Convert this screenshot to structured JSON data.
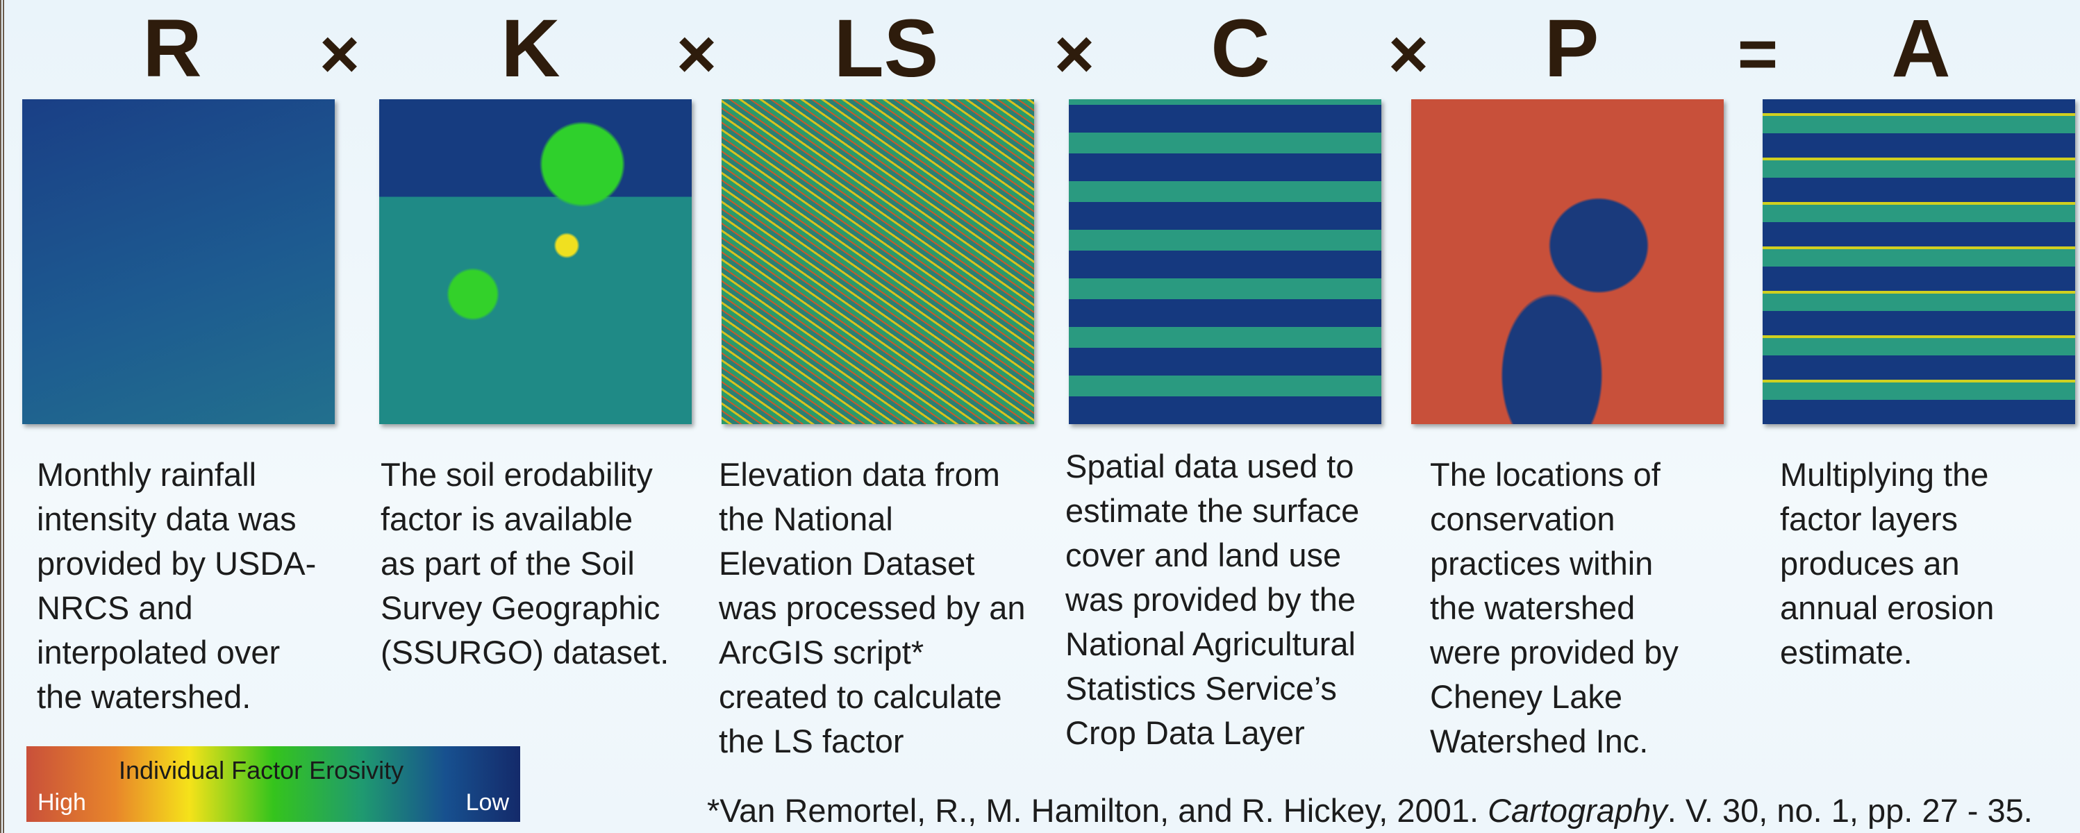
{
  "equation": {
    "terms": [
      "R",
      "K",
      "LS",
      "C",
      "P",
      "A"
    ],
    "operators": [
      "×",
      "×",
      "×",
      "×",
      "="
    ]
  },
  "panels": [
    {
      "lines": [
        "Monthly rainfall",
        "intensity data was",
        "provided by USDA-",
        "NRCS and",
        "interpolated over",
        "the watershed."
      ]
    },
    {
      "lines": [
        "The soil erodability",
        "factor is available",
        "as part of the Soil",
        "Survey Geographic",
        "(SSURGO) dataset."
      ]
    },
    {
      "lines": [
        "Elevation data from",
        "the National",
        "Elevation Dataset",
        "was processed by an",
        "ArcGIS script*",
        "created to calculate",
        "the LS factor"
      ]
    },
    {
      "lines": [
        "Spatial data used to",
        "estimate the surface",
        "cover and land use",
        "was provided by the",
        "National Agricultural",
        "Statistics Service’s",
        "Crop Data Layer"
      ]
    },
    {
      "lines": [
        "The locations of",
        "conservation",
        "practices within",
        "the watershed",
        "were provided by",
        "Cheney Lake",
        "Watershed Inc."
      ]
    },
    {
      "lines": [
        "Multiplying the",
        "factor layers",
        "produces an",
        "annual erosion",
        "estimate."
      ]
    }
  ],
  "legend": {
    "title": "Individual Factor Erosivity",
    "high": "High",
    "low": "Low"
  },
  "citation": {
    "before": "*Van Remortel, R., M. Hamilton, and R. Hickey, 2001. ",
    "journal": "Cartography",
    "after": ". V. 30, no. 1, pp. 27 - 35."
  }
}
